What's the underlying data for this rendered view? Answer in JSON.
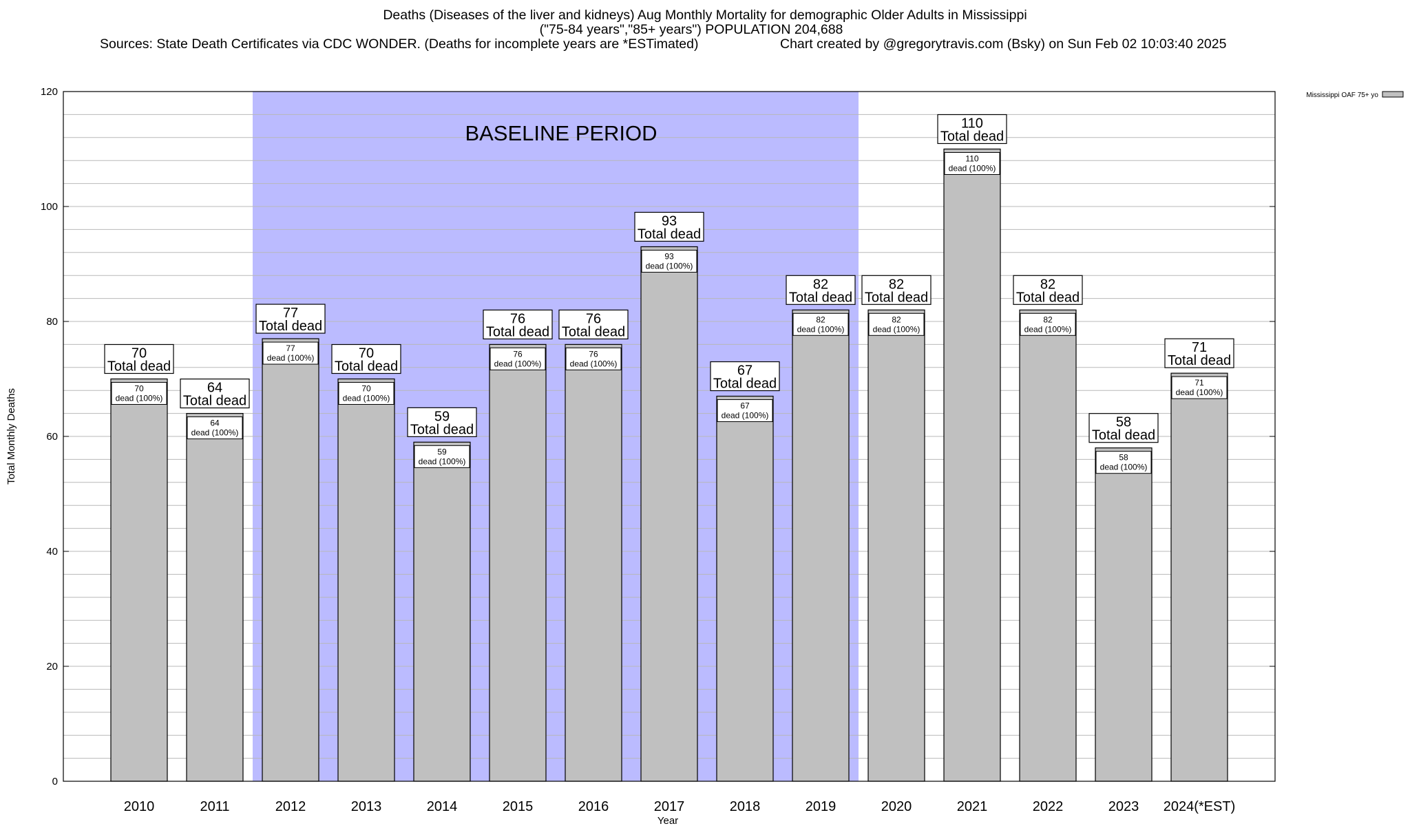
{
  "chart_data": {
    "type": "bar",
    "title": "Deaths (Diseases of the liver and kidneys) Aug Monthly Mortality for demographic Older Adults in Mississippi",
    "subtitle": "(\"75-84 years\",\"85+ years\") POPULATION 204,688",
    "sources": "Sources: State Death Certificates via CDC WONDER. (Deaths for incomplete years are *ESTimated)",
    "credit": "Chart created by @gregorytravis.com (Bsky) on Sun Feb 02 10:03:40 2025",
    "xlabel": "Year",
    "ylabel": "Total Monthly Deaths",
    "ylim": [
      0,
      120
    ],
    "yticks": [
      0,
      20,
      40,
      60,
      80,
      100,
      120
    ],
    "categories": [
      "2010",
      "2011",
      "2012",
      "2013",
      "2014",
      "2015",
      "2016",
      "2017",
      "2018",
      "2019",
      "2020",
      "2021",
      "2022",
      "2023",
      "2024(*EST)"
    ],
    "series": [
      {
        "name": "Mississippi OAF 75+ yo",
        "values": [
          70,
          64,
          77,
          70,
          59,
          76,
          76,
          93,
          67,
          82,
          82,
          110,
          82,
          58,
          71
        ]
      }
    ],
    "total_label": "Total dead",
    "inner_label": "dead (100%)",
    "baseline": {
      "label": "BASELINE PERIOD",
      "from": "2012",
      "to": "2019",
      "color": "#bbbbff"
    },
    "bar_color": "#c0c0c0",
    "grid": true,
    "legend_position": "top-right"
  }
}
